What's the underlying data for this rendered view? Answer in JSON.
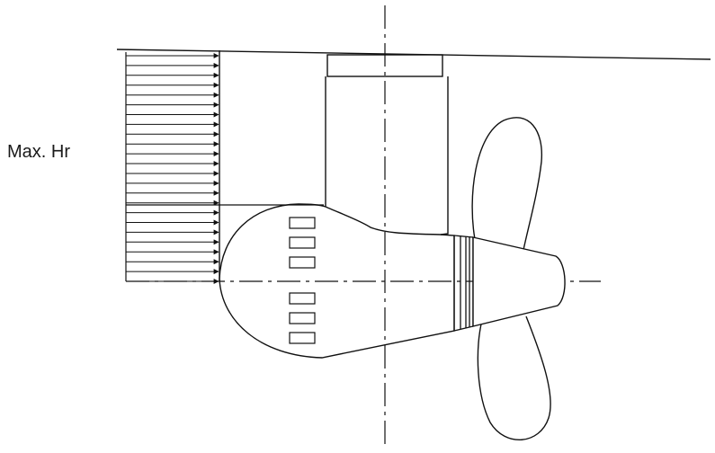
{
  "labels": {
    "max_hr": "Max. Hr"
  },
  "colors": {
    "stroke": "#111111",
    "background": "#ffffff"
  },
  "arrow_profile": {
    "arrow_count": 24
  }
}
